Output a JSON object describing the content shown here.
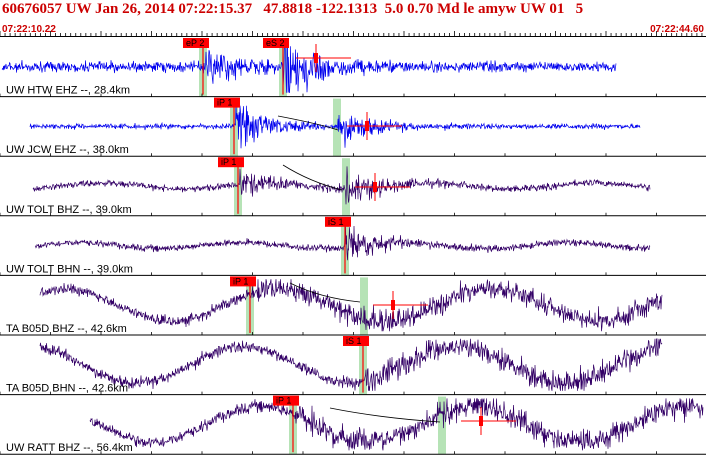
{
  "header": {
    "title": "60676057 UW Jan 26, 2014 07:22:15.37   47.8818 -122.1313  5.0 0.70 Md le amyw UW 01   5",
    "start_time": "07:22:10.22",
    "end_time": "07:22:44.60"
  },
  "colors": {
    "header_text": "#cc0000",
    "trace_short_period": "#0000ee",
    "trace_broadband": "#330066",
    "pick_box": "#ff0000",
    "window_fill": "#b6e3b6",
    "tick": "#000000"
  },
  "channels": [
    {
      "label": "UW HTW EHZ --, 28.4km",
      "trace_color": "short_period",
      "picks": [
        {
          "label": "eP 2",
          "kind": "P"
        },
        {
          "label": "eS 2",
          "kind": "S"
        }
      ]
    },
    {
      "label": "UW JCW EHZ --, 38.0km",
      "trace_color": "short_period",
      "picks": [
        {
          "label": "iP 1",
          "kind": "P"
        }
      ]
    },
    {
      "label": "UW TOLT BHZ --, 39.0km",
      "trace_color": "broadband",
      "picks": [
        {
          "label": "iP 1",
          "kind": "P"
        }
      ]
    },
    {
      "label": "UW TOLT BHN --, 39.0km",
      "trace_color": "broadband",
      "picks": [
        {
          "label": "iS 1",
          "kind": "S"
        }
      ]
    },
    {
      "label": "TA B05D BHZ --, 42.6km",
      "trace_color": "broadband",
      "picks": [
        {
          "label": "iP 1",
          "kind": "P"
        }
      ]
    },
    {
      "label": "TA B05D BHN --, 42.6km",
      "trace_color": "broadband",
      "picks": [
        {
          "label": "iS 1",
          "kind": "S"
        }
      ]
    },
    {
      "label": "UW RATT BHZ --, 56.4km",
      "trace_color": "broadband",
      "picks": [
        {
          "label": "iP 1",
          "kind": "P"
        }
      ]
    }
  ]
}
